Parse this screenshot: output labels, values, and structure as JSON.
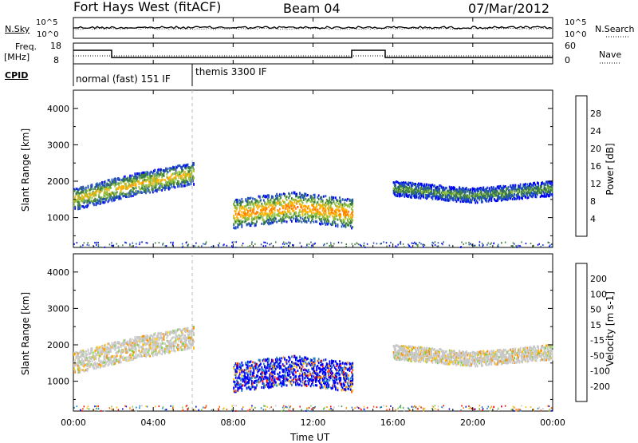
{
  "header": {
    "radar": "Fort Hays West (fitACF)",
    "beam": "Beam 04",
    "date": "07/Mar/2012"
  },
  "top_panel": {
    "left_label": "N.Sky",
    "right_label": "N.Search",
    "left_ticks": [
      "10^5",
      "10^0"
    ],
    "right_ticks": [
      "10^5",
      "10^0"
    ]
  },
  "freq_panel": {
    "left_label_1": "Freq.",
    "left_label_2": "[MHz]",
    "right_label": "Nave",
    "left_ticks": [
      "18",
      "8"
    ],
    "right_ticks": [
      "60",
      "0"
    ]
  },
  "cpid_panel": {
    "label": "CPID",
    "modes": [
      "normal (fast) 151 IF",
      "themis 3300 IF"
    ]
  },
  "colors": {
    "power_scale": [
      "#0000ff",
      "#2050c0",
      "#3f8040",
      "#8fbf3f",
      "#ffb000",
      "#ff8000",
      "#ff5000",
      "#ff0000"
    ],
    "velocity_scale": [
      "#ff0000",
      "#ff5000",
      "#ff9000",
      "#ffc000",
      "#c8c8c8",
      "#80d040",
      "#40a040",
      "#2080c0",
      "#0000ff"
    ],
    "ground_scatter": "#c8c8c8"
  },
  "chart_data": [
    {
      "type": "heatmap",
      "title": "Power",
      "ylabel": "Slant Range [km]",
      "colorbar_label": "Power [dB]",
      "colorbar_ticks": [
        "28",
        "24",
        "20",
        "16",
        "12",
        "8",
        "4"
      ],
      "ylim": [
        180,
        4500
      ],
      "y_ticks": [
        "1000",
        "2000",
        "3000",
        "4000"
      ],
      "xlim": [
        0,
        24
      ],
      "regions": [
        {
          "t0": 0.0,
          "t1": 6.0,
          "r_center": [
            1500,
            1900,
            2200
          ],
          "width": 300,
          "level": 18
        },
        {
          "t0": 8.0,
          "t1": 14.0,
          "r_center": [
            1100,
            1300,
            1100
          ],
          "width": 400,
          "level": 22
        },
        {
          "t0": 16.0,
          "t1": 24.0,
          "r_center": [
            1800,
            1600,
            1800
          ],
          "width": 200,
          "level": 12
        }
      ]
    },
    {
      "type": "heatmap",
      "title": "Velocity",
      "ylabel": "Slant Range [km]",
      "colorbar_label": "Velocity [m s-1]",
      "colorbar_ticks": [
        "200",
        "100",
        "50",
        "15",
        "-15",
        "-50",
        "-100",
        "-200"
      ],
      "ylim": [
        180,
        4500
      ],
      "y_ticks": [
        "1000",
        "2000",
        "3000",
        "4000"
      ],
      "xlim": [
        0,
        24
      ],
      "x_ticks": [
        "00:00",
        "04:00",
        "08:00",
        "12:00",
        "16:00",
        "20:00",
        "00:00"
      ],
      "xlabel": "Time UT"
    }
  ]
}
